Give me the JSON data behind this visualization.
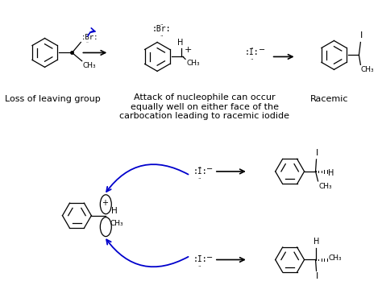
{
  "bg_color": "#ffffff",
  "top_row": {
    "label1": "Loss of leaving group",
    "label2": "Attack of nucleophile can occur\nequally well on either face of the\ncarbocation leading to racemic iodide",
    "label3": "Racemic"
  },
  "curved_arrow_color": "#0000cc",
  "font_size_label": 8,
  "font_size_mol": 9,
  "fig_w": 4.74,
  "fig_h": 3.75,
  "dpi": 100
}
